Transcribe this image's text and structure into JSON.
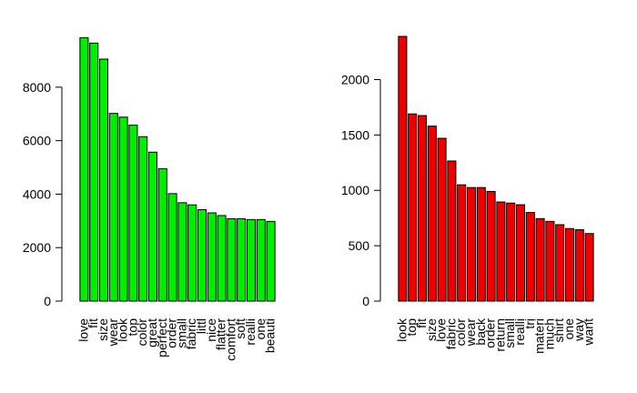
{
  "chart_data": [
    {
      "type": "bar",
      "title": "",
      "xlabel": "",
      "ylabel": "",
      "color": "#00ee00",
      "ylim": [
        0,
        9900
      ],
      "yticks": [
        0,
        2000,
        4000,
        6000,
        8000
      ],
      "grid": false,
      "categories": [
        "love",
        "fit",
        "size",
        "wear",
        "look",
        "top",
        "color",
        "great",
        "perfect",
        "order",
        "small",
        "fabric",
        "littl",
        "nice",
        "flatter",
        "comfort",
        "soft",
        "realli",
        "one",
        "beauti"
      ],
      "values": [
        9850,
        9650,
        9050,
        7020,
        6880,
        6580,
        6150,
        5570,
        4950,
        4020,
        3680,
        3600,
        3420,
        3300,
        3200,
        3080,
        3080,
        3050,
        3050,
        2980
      ]
    },
    {
      "type": "bar",
      "title": "",
      "xlabel": "",
      "ylabel": "",
      "color": "#ee0000",
      "ylim": [
        0,
        2390
      ],
      "yticks": [
        0,
        500,
        1000,
        1500,
        2000
      ],
      "grid": false,
      "categories": [
        "look",
        "top",
        "fit",
        "size",
        "love",
        "fabric",
        "color",
        "wear",
        "back",
        "order",
        "return",
        "small",
        "realli",
        "tri",
        "materi",
        "much",
        "shirt",
        "one",
        "way",
        "want"
      ],
      "values": [
        2390,
        1690,
        1675,
        1580,
        1470,
        1265,
        1050,
        1025,
        1025,
        990,
        895,
        885,
        870,
        800,
        745,
        720,
        690,
        655,
        645,
        610
      ]
    }
  ]
}
